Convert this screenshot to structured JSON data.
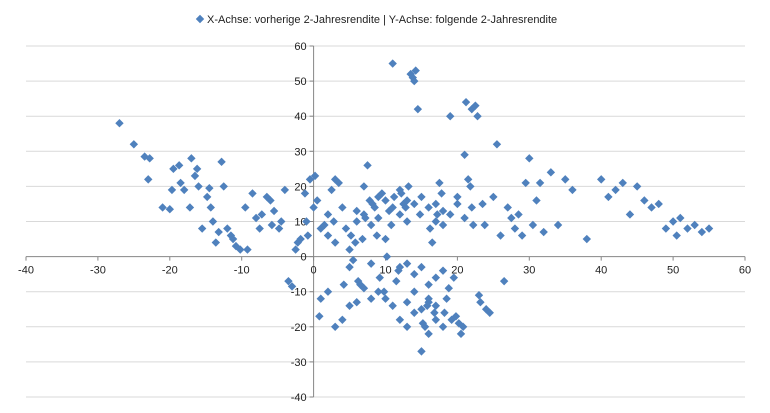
{
  "chart_data": {
    "type": "scatter",
    "legend": {
      "label": "X-Achse: vorherige 2-Jahresrendite | Y-Achse: folgende 2-Jahresrendite",
      "position": "top-center"
    },
    "xlim": [
      -40,
      60
    ],
    "ylim": [
      -40,
      60
    ],
    "x_ticks": [
      -40,
      -30,
      -20,
      -10,
      0,
      10,
      20,
      30,
      40,
      50,
      60
    ],
    "y_ticks": [
      -40,
      -30,
      -20,
      -10,
      0,
      10,
      20,
      30,
      40,
      50,
      60
    ],
    "grid": {
      "horizontal": true,
      "vertical": false
    },
    "colors": {
      "marker": "#4F81BD",
      "grid": "#D9D9D9",
      "axis": "#868686"
    },
    "marker": "diamond",
    "points": [
      [
        -27,
        38
      ],
      [
        -25,
        32
      ],
      [
        -23.5,
        28.5
      ],
      [
        -22.8,
        28
      ],
      [
        -23,
        22
      ],
      [
        -21,
        14
      ],
      [
        -20,
        13.5
      ],
      [
        -19.7,
        19
      ],
      [
        -19.5,
        25
      ],
      [
        -18.7,
        26
      ],
      [
        -18.5,
        21
      ],
      [
        -18,
        19
      ],
      [
        -17.2,
        14
      ],
      [
        -17,
        28
      ],
      [
        -16.5,
        23
      ],
      [
        -16.2,
        25
      ],
      [
        -16,
        20
      ],
      [
        -15.5,
        8
      ],
      [
        -14.8,
        17
      ],
      [
        -14.5,
        19.5
      ],
      [
        -14.3,
        14
      ],
      [
        -14,
        10
      ],
      [
        -13.6,
        4
      ],
      [
        -13.2,
        7
      ],
      [
        -12.8,
        27
      ],
      [
        -12.5,
        20
      ],
      [
        -12,
        8
      ],
      [
        -11.5,
        6
      ],
      [
        -11.2,
        5
      ],
      [
        -10.8,
        3
      ],
      [
        -10.2,
        2
      ],
      [
        -9.5,
        14
      ],
      [
        -9.2,
        2
      ],
      [
        -8.5,
        18
      ],
      [
        -8,
        11
      ],
      [
        -7.5,
        8
      ],
      [
        -7.2,
        12
      ],
      [
        -6.5,
        17
      ],
      [
        -6,
        16
      ],
      [
        -5.8,
        9
      ],
      [
        -5.5,
        13
      ],
      [
        -4.8,
        8
      ],
      [
        -4.5,
        10
      ],
      [
        -4,
        19
      ],
      [
        -3.5,
        -7
      ],
      [
        -3,
        -8.5
      ],
      [
        -2.5,
        2
      ],
      [
        -2.2,
        4
      ],
      [
        -1.8,
        5
      ],
      [
        -1.2,
        18
      ],
      [
        -1,
        10
      ],
      [
        -0.8,
        6
      ],
      [
        -0.5,
        22
      ],
      [
        0.2,
        23
      ],
      [
        0,
        14
      ],
      [
        0.5,
        16
      ],
      [
        0.8,
        -17
      ],
      [
        1,
        -12
      ],
      [
        1.5,
        9
      ],
      [
        2,
        12
      ],
      [
        2.5,
        19
      ],
      [
        2.8,
        10
      ],
      [
        3,
        22
      ],
      [
        3.5,
        21
      ],
      [
        4,
        14
      ],
      [
        4.2,
        -8
      ],
      [
        4.5,
        8
      ],
      [
        5,
        -3
      ],
      [
        5.2,
        6
      ],
      [
        5.5,
        -1
      ],
      [
        5.8,
        4
      ],
      [
        6,
        13
      ],
      [
        6.2,
        -7
      ],
      [
        6.5,
        -8
      ],
      [
        6.8,
        5
      ],
      [
        7,
        20
      ],
      [
        7.2,
        11
      ],
      [
        7.5,
        26
      ],
      [
        7.8,
        16
      ],
      [
        8,
        -2
      ],
      [
        8.2,
        15
      ],
      [
        8.5,
        14
      ],
      [
        8.8,
        6
      ],
      [
        9,
        17
      ],
      [
        9.2,
        -6
      ],
      [
        9.5,
        18
      ],
      [
        9.8,
        -10
      ],
      [
        10,
        5
      ],
      [
        10.2,
        0
      ],
      [
        10.5,
        13
      ],
      [
        10.8,
        9
      ],
      [
        11,
        55
      ],
      [
        11.2,
        17
      ],
      [
        11.5,
        -7
      ],
      [
        11.8,
        -4
      ],
      [
        12,
        19
      ],
      [
        12.2,
        18
      ],
      [
        12.5,
        15
      ],
      [
        12.8,
        14
      ],
      [
        13,
        16
      ],
      [
        13.2,
        20
      ],
      [
        13.5,
        52
      ],
      [
        13.8,
        51
      ],
      [
        14,
        50
      ],
      [
        14.2,
        53
      ],
      [
        14.5,
        42
      ],
      [
        14.8,
        12
      ],
      [
        15,
        -27
      ],
      [
        15.2,
        -19
      ],
      [
        15.5,
        -20
      ],
      [
        15.8,
        -14
      ],
      [
        16,
        -13
      ],
      [
        16.2,
        8
      ],
      [
        16.5,
        4
      ],
      [
        16.8,
        -16
      ],
      [
        17,
        15
      ],
      [
        17.2,
        12
      ],
      [
        17.5,
        21
      ],
      [
        17.8,
        18
      ],
      [
        18,
        13
      ],
      [
        18.2,
        -16
      ],
      [
        18.5,
        -12
      ],
      [
        18.8,
        -9
      ],
      [
        19,
        40
      ],
      [
        19.2,
        -18
      ],
      [
        19.5,
        -6
      ],
      [
        19.8,
        -17
      ],
      [
        20,
        17
      ],
      [
        20.2,
        -19
      ],
      [
        20.5,
        -22
      ],
      [
        20.8,
        -20
      ],
      [
        21,
        29
      ],
      [
        21.2,
        44
      ],
      [
        21.5,
        22
      ],
      [
        21.8,
        20
      ],
      [
        22,
        42
      ],
      [
        22.2,
        9
      ],
      [
        22.5,
        43
      ],
      [
        22.8,
        40
      ],
      [
        23,
        -11
      ],
      [
        23.2,
        -13
      ],
      [
        23.5,
        15
      ],
      [
        23.8,
        9
      ],
      [
        24,
        -15
      ],
      [
        24.5,
        -16
      ],
      [
        25,
        17
      ],
      [
        25.5,
        32
      ],
      [
        26,
        6
      ],
      [
        26.5,
        -7
      ],
      [
        27,
        14
      ],
      [
        27.5,
        11
      ],
      [
        28,
        8
      ],
      [
        28.5,
        12
      ],
      [
        29,
        6
      ],
      [
        29.5,
        21
      ],
      [
        30,
        28
      ],
      [
        30.5,
        9
      ],
      [
        31,
        16
      ],
      [
        31.5,
        21
      ],
      [
        32,
        7
      ],
      [
        33,
        24
      ],
      [
        34,
        9
      ],
      [
        35,
        22
      ],
      [
        36,
        19
      ],
      [
        38,
        5
      ],
      [
        40,
        22
      ],
      [
        41,
        17
      ],
      [
        42,
        19
      ],
      [
        43,
        21
      ],
      [
        44,
        12
      ],
      [
        45,
        20
      ],
      [
        46,
        16
      ],
      [
        47,
        14
      ],
      [
        48,
        15
      ],
      [
        49,
        8
      ],
      [
        50,
        10
      ],
      [
        50.5,
        6
      ],
      [
        51,
        11
      ],
      [
        52,
        8
      ],
      [
        53,
        9
      ],
      [
        54,
        7
      ],
      [
        55,
        8
      ],
      [
        1,
        8
      ],
      [
        2,
        6
      ],
      [
        3,
        4
      ],
      [
        5,
        2
      ],
      [
        6,
        10
      ],
      [
        7,
        12
      ],
      [
        8,
        9
      ],
      [
        9,
        11
      ],
      [
        10,
        16
      ],
      [
        11,
        14
      ],
      [
        12,
        12
      ],
      [
        13,
        10
      ],
      [
        14,
        15
      ],
      [
        15,
        17
      ],
      [
        16,
        14
      ],
      [
        17,
        10
      ],
      [
        18,
        9
      ],
      [
        19,
        12
      ],
      [
        20,
        15
      ],
      [
        21,
        11
      ],
      [
        22,
        14
      ],
      [
        12,
        -3
      ],
      [
        13,
        -2
      ],
      [
        14,
        -5
      ],
      [
        15,
        -3
      ],
      [
        16,
        -8
      ],
      [
        17,
        -6
      ],
      [
        18,
        -4
      ],
      [
        14,
        -10
      ],
      [
        16,
        -12
      ],
      [
        17,
        -14
      ],
      [
        13,
        -13
      ],
      [
        15,
        -15
      ],
      [
        17,
        -18
      ],
      [
        18,
        -20
      ],
      [
        16,
        -22
      ],
      [
        14,
        -16
      ],
      [
        13,
        -20
      ],
      [
        12,
        -18
      ],
      [
        11,
        -14
      ],
      [
        10,
        -12
      ],
      [
        9,
        -10
      ],
      [
        6,
        -13
      ],
      [
        4,
        -18
      ],
      [
        3,
        -20
      ],
      [
        2,
        -10
      ],
      [
        5,
        -14
      ],
      [
        7,
        -9
      ],
      [
        8,
        -12
      ]
    ]
  }
}
